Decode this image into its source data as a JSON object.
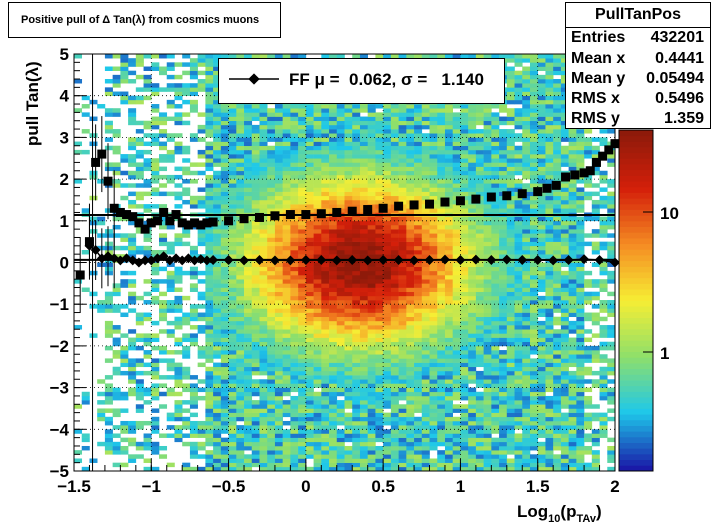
{
  "title": "Positive pull of Δ Tan(λ) from cosmics muons",
  "stats": {
    "name": "PullTanPos",
    "rows": [
      {
        "label": "Entries",
        "value": "432201"
      },
      {
        "label": "Mean x",
        "value": "0.4441"
      },
      {
        "label": "Mean y",
        "value": "0.05494"
      },
      {
        "label": "RMS x",
        "value": "0.5496"
      },
      {
        "label": "RMS y",
        "value": "1.359"
      }
    ]
  },
  "legend": {
    "text": "FF μ =  0.062, σ =   1.140"
  },
  "colors": {
    "markers": "#000000",
    "palette": [
      "#1a1aa8",
      "#1ec8ea",
      "#8fdf6a",
      "#f6ee34",
      "#f58c23",
      "#d41f0a",
      "#8e1a0a"
    ]
  },
  "chart_data": {
    "type": "heatmap",
    "title": "Positive pull of Δ Tan(λ) from cosmics muons",
    "xlabel": "Log10(pTAv)",
    "ylabel": "pull Tan(λ)",
    "xlim": [
      -1.5,
      2
    ],
    "ylim": [
      -5,
      5
    ],
    "x_ticks": [
      "−1.5",
      "−1",
      "−0.5",
      "0",
      "0.5",
      "1",
      "1.5",
      "2"
    ],
    "y_ticks": [
      "−5",
      "−4",
      "−3",
      "−2",
      "−1",
      "0",
      "1",
      "2",
      "3",
      "4",
      "5"
    ],
    "z_ticks": [
      "1",
      "10"
    ],
    "grid": true,
    "hlines": [
      1.14,
      0.062
    ],
    "vlines": [
      -1.38
    ],
    "series": [
      {
        "name": "sigma",
        "x": [
          -1.46,
          -1.4,
          -1.36,
          -1.32,
          -1.28,
          -1.24,
          -1.2,
          -1.16,
          -1.12,
          -1.08,
          -1.04,
          -1.0,
          -0.96,
          -0.92,
          -0.88,
          -0.84,
          -0.8,
          -0.76,
          -0.72,
          -0.68,
          -0.64,
          -0.6,
          -0.5,
          -0.4,
          -0.3,
          -0.2,
          -0.1,
          0.0,
          0.1,
          0.2,
          0.3,
          0.4,
          0.5,
          0.6,
          0.7,
          0.8,
          0.9,
          1.0,
          1.1,
          1.2,
          1.3,
          1.4,
          1.5,
          1.56,
          1.62,
          1.68,
          1.74,
          1.8,
          1.84,
          1.88,
          1.92,
          1.96,
          2.0
        ],
        "y": [
          -0.3,
          0.5,
          2.4,
          2.6,
          1.95,
          1.3,
          1.2,
          1.15,
          1.1,
          0.95,
          0.8,
          0.95,
          1.0,
          1.2,
          1.0,
          1.15,
          0.95,
          0.9,
          0.95,
          0.9,
          0.95,
          0.97,
          1.0,
          1.05,
          1.08,
          1.12,
          1.15,
          1.15,
          1.17,
          1.2,
          1.23,
          1.27,
          1.3,
          1.35,
          1.38,
          1.4,
          1.45,
          1.48,
          1.52,
          1.57,
          1.6,
          1.65,
          1.7,
          1.78,
          1.85,
          2.05,
          2.1,
          2.15,
          2.2,
          2.4,
          2.55,
          2.7,
          2.85
        ]
      },
      {
        "name": "mean",
        "x": [
          -1.4,
          -1.36,
          -1.32,
          -1.28,
          -1.24,
          -1.2,
          -1.16,
          -1.12,
          -1.08,
          -1.04,
          -1.0,
          -0.96,
          -0.92,
          -0.88,
          -0.84,
          -0.8,
          -0.76,
          -0.72,
          -0.68,
          -0.64,
          -0.6,
          -0.5,
          -0.4,
          -0.3,
          -0.2,
          -0.1,
          0.0,
          0.1,
          0.2,
          0.3,
          0.4,
          0.5,
          0.6,
          0.7,
          0.8,
          0.9,
          1.0,
          1.1,
          1.2,
          1.3,
          1.4,
          1.5,
          1.6,
          1.7,
          1.8,
          1.9,
          2.0
        ],
        "y": [
          0.4,
          0.3,
          0.1,
          0.15,
          0.1,
          0.05,
          0.1,
          0.05,
          0.0,
          0.05,
          0.05,
          0.1,
          0.15,
          0.05,
          0.1,
          0.05,
          0.1,
          0.05,
          0.08,
          0.05,
          0.06,
          0.06,
          0.05,
          0.06,
          0.05,
          0.05,
          0.06,
          0.06,
          0.05,
          0.06,
          0.05,
          0.06,
          0.06,
          0.05,
          0.06,
          0.07,
          0.06,
          0.07,
          0.06,
          0.07,
          0.06,
          0.06,
          0.05,
          0.06,
          0.08,
          0.06,
          0.0
        ]
      }
    ]
  }
}
